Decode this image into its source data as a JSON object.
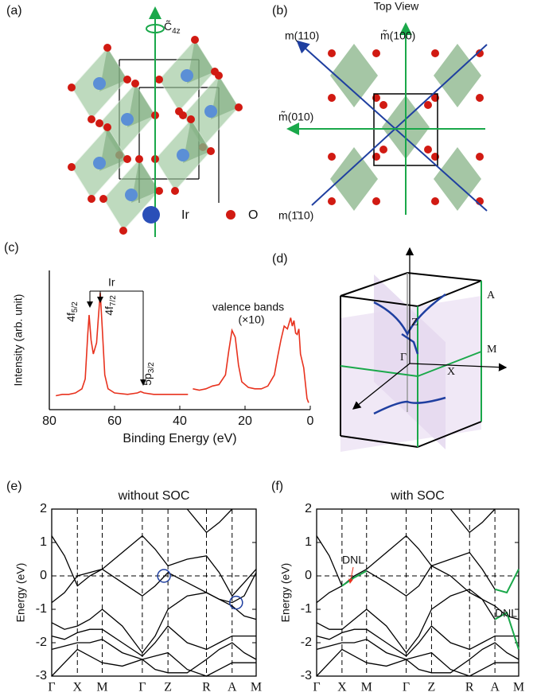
{
  "panels": {
    "a": {
      "label": "(a)",
      "axis_symbol": "C̃",
      "axis_subscript": "4z",
      "legend": [
        "Ir",
        "O"
      ]
    },
    "b": {
      "label": "(b)",
      "title": "Top View",
      "mirrors": [
        "m(110)",
        "m̃(100)",
        "m̃(010)",
        "m(1̄10)"
      ]
    },
    "d": {
      "label": "(d)",
      "points": [
        "Z",
        "A",
        "Γ",
        "M",
        "X"
      ]
    }
  },
  "chart_data": [
    {
      "type": "line",
      "panel_label": "(c)",
      "xlabel": "Binding Energy (eV)",
      "ylabel": "Intensity (arb. unit)",
      "xlim": [
        80,
        0
      ],
      "xticks": [
        80,
        60,
        40,
        20,
        0
      ],
      "ylim": [
        0,
        100
      ],
      "color": "#e8321e",
      "x": [
        78,
        76,
        74,
        72,
        70,
        69,
        68.2,
        67.8,
        67.2,
        66.5,
        65.5,
        65,
        64.4,
        63.8,
        63,
        62,
        60,
        56,
        53,
        52,
        51,
        48,
        44,
        40,
        37.5,
        36.8,
        36,
        34,
        32,
        30,
        28,
        26,
        25,
        24,
        23,
        22,
        21,
        19,
        17,
        15,
        13,
        11,
        10,
        9,
        8,
        7,
        6,
        5.5,
        5,
        4.5,
        4,
        3.5,
        3,
        2,
        1,
        0.5
      ],
      "values": [
        10,
        11,
        11,
        12,
        15,
        22,
        55,
        68,
        50,
        40,
        48,
        65,
        84,
        60,
        25,
        15,
        12,
        11,
        12,
        13,
        12,
        11,
        11,
        11,
        11,
        null,
        15,
        14,
        15,
        17,
        18,
        25,
        42,
        57,
        52,
        32,
        20,
        16,
        15,
        15,
        17,
        25,
        38,
        50,
        60,
        58,
        66,
        60,
        64,
        55,
        54,
        58,
        40,
        30,
        8,
        5
      ],
      "annotations": {
        "group": "Ir",
        "peaks": [
          {
            "text": "4f",
            "sub": "5/2"
          },
          {
            "text": "4f",
            "sub": "7/2"
          },
          {
            "text": "5p",
            "sub": "3/2"
          }
        ],
        "valence": "valence bands",
        "scale": "(×10)"
      }
    },
    {
      "type": "line",
      "panel_label": "(e)",
      "title": "without SOC",
      "ylabel": "Energy (eV)",
      "xlim": [
        0,
        2.55
      ],
      "ylim": [
        -3,
        2
      ],
      "yticks": [
        -3,
        -2,
        -1,
        0,
        1,
        2
      ],
      "fermi_level": 0,
      "xticks": [
        {
          "value": 0,
          "label": "Γ"
        },
        {
          "value": 0.32,
          "label": "X"
        },
        {
          "value": 0.63,
          "label": "M"
        },
        {
          "value": 1.13,
          "label": "Γ"
        },
        {
          "value": 1.45,
          "label": "Z"
        },
        {
          "value": 1.93,
          "label": "R"
        },
        {
          "value": 2.25,
          "label": "A"
        },
        {
          "value": 2.55,
          "label": "M"
        }
      ],
      "x": [
        0,
        0.16,
        0.32,
        0.475,
        0.63,
        0.88,
        1.13,
        1.29,
        1.45,
        1.69,
        1.93,
        2.09,
        2.25,
        2.4,
        2.55
      ],
      "series": [
        {
          "color": "#000000",
          "values": [
            null,
            null,
            null,
            null,
            null,
            null,
            null,
            null,
            null,
            2.0,
            1.3,
            1.6,
            2.0,
            null,
            null
          ]
        },
        {
          "color": "#000000",
          "values": [
            1.2,
            0.6,
            -0.3,
            0.0,
            0.2,
            0.7,
            1.2,
            0.8,
            0.3,
            0.5,
            0.6,
            0.1,
            -0.6,
            -0.2,
            0.2
          ]
        },
        {
          "color": "#000000",
          "values": [
            -0.8,
            -0.5,
            0.0,
            0.1,
            0.2,
            -0.2,
            -0.6,
            -0.3,
            0.1,
            -0.2,
            -0.5,
            -0.7,
            -0.8,
            -0.6,
            0.1
          ]
        },
        {
          "color": "#000000",
          "values": [
            -1.4,
            -1.6,
            -1.5,
            -1.3,
            -1.0,
            -1.5,
            -2.3,
            -1.8,
            -1.0,
            -0.6,
            -0.5,
            -0.7,
            -0.9,
            -1.2,
            -1.3
          ]
        },
        {
          "color": "#000000",
          "values": [
            -1.8,
            -1.9,
            -1.7,
            -1.6,
            -1.6,
            -2.0,
            -2.4,
            -2.0,
            -1.5,
            -2.0,
            -2.2,
            -2.0,
            -1.8,
            -1.8,
            -1.8
          ]
        },
        {
          "color": "#000000",
          "values": [
            -2.2,
            -2.1,
            -2.0,
            -2.0,
            -1.9,
            -2.3,
            -2.5,
            -2.4,
            -2.3,
            -2.8,
            -3.0,
            -2.8,
            -2.6,
            -2.6,
            -2.6
          ]
        },
        {
          "color": "#000000",
          "values": [
            -3.0,
            -2.6,
            -2.2,
            -2.4,
            -2.6,
            -2.7,
            -2.5,
            -2.8,
            -2.9,
            -2.9,
            -2.5,
            -2.2,
            -2.0,
            -2.3,
            -2.5
          ]
        }
      ],
      "markers": {
        "x": [
          1.4,
          2.3
        ],
        "y": [
          0,
          -0.8
        ],
        "color": "#1f3fa0"
      }
    },
    {
      "type": "line",
      "panel_label": "(f)",
      "title": "with SOC",
      "ylabel": "Energy (eV)",
      "xlim": [
        0,
        2.55
      ],
      "ylim": [
        -3,
        2
      ],
      "yticks": [
        -3,
        -2,
        -1,
        0,
        1,
        2
      ],
      "fermi_level": 0,
      "xticks": [
        {
          "value": 0,
          "label": "Γ"
        },
        {
          "value": 0.32,
          "label": "X"
        },
        {
          "value": 0.63,
          "label": "M"
        },
        {
          "value": 1.13,
          "label": "Γ"
        },
        {
          "value": 1.45,
          "label": "Z"
        },
        {
          "value": 1.93,
          "label": "R"
        },
        {
          "value": 2.25,
          "label": "A"
        },
        {
          "value": 2.55,
          "label": "M"
        }
      ],
      "x": [
        0,
        0.16,
        0.32,
        0.475,
        0.63,
        0.88,
        1.13,
        1.29,
        1.45,
        1.69,
        1.93,
        2.09,
        2.25,
        2.4,
        2.55
      ],
      "series": [
        {
          "color": "#000000",
          "values": [
            null,
            null,
            null,
            null,
            null,
            null,
            null,
            null,
            null,
            2.0,
            1.3,
            1.6,
            2.0,
            null,
            null
          ]
        },
        {
          "color": "#000000",
          "values": [
            1.2,
            0.6,
            -0.3,
            0.0,
            0.2,
            0.7,
            1.2,
            0.8,
            0.3,
            0.5,
            0.7,
            0.2,
            -0.4,
            -0.5,
            0.2
          ]
        },
        {
          "color": "#000000",
          "values": [
            -0.8,
            -0.5,
            -0.3,
            -0.05,
            0.15,
            -0.2,
            -0.6,
            -0.3,
            0.3,
            0.0,
            -0.5,
            -0.7,
            -1.3,
            -1.1,
            -2.2
          ]
        },
        {
          "color": "#000000",
          "values": [
            -1.4,
            -1.6,
            -1.6,
            -1.3,
            -1.0,
            -1.5,
            -2.3,
            -1.8,
            -1.0,
            -0.6,
            -0.4,
            -0.7,
            -0.9,
            -1.2,
            -1.3
          ]
        },
        {
          "color": "#000000",
          "values": [
            -1.8,
            -1.9,
            -1.7,
            -1.6,
            -1.6,
            -2.0,
            -2.4,
            -2.0,
            -1.5,
            -2.0,
            -2.2,
            -2.0,
            -1.8,
            -1.8,
            -1.8
          ]
        },
        {
          "color": "#000000",
          "values": [
            -2.2,
            -2.1,
            -2.0,
            -2.0,
            -1.9,
            -2.3,
            -2.5,
            -2.4,
            -2.3,
            -2.8,
            -3.0,
            -2.8,
            -2.6,
            -2.6,
            -2.6
          ]
        },
        {
          "color": "#000000",
          "values": [
            -3.0,
            -2.6,
            -2.2,
            -2.4,
            -2.6,
            -2.7,
            -2.5,
            -2.8,
            -2.9,
            -2.9,
            -2.5,
            -2.2,
            -2.0,
            -2.3,
            -2.5
          ]
        },
        {
          "color": "#1aa84a",
          "values": [
            null,
            null,
            -0.3,
            -0.05,
            0.15,
            null,
            null,
            null,
            null,
            null,
            null,
            null,
            null,
            null,
            null
          ]
        },
        {
          "color": "#1aa84a",
          "values": [
            null,
            null,
            null,
            null,
            null,
            null,
            null,
            null,
            null,
            null,
            null,
            null,
            -0.4,
            -0.5,
            0.2
          ]
        },
        {
          "color": "#1aa84a",
          "values": [
            null,
            null,
            null,
            null,
            null,
            null,
            null,
            null,
            null,
            null,
            null,
            null,
            -1.3,
            -1.1,
            -2.2
          ]
        }
      ],
      "annotations": [
        "DNL",
        "DNL"
      ],
      "annotation_color": "#e8321e"
    }
  ]
}
